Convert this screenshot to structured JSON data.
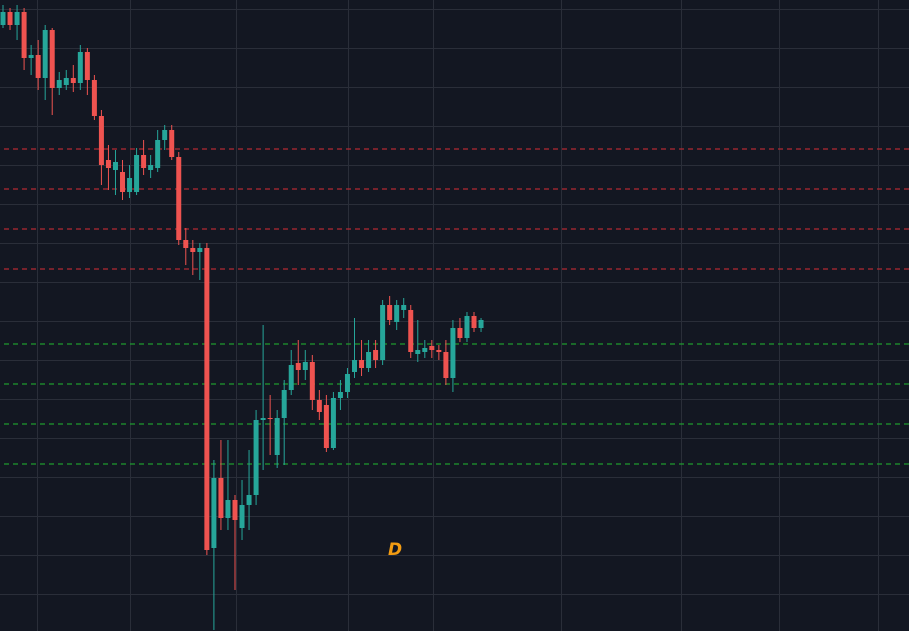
{
  "chart_data": {
    "type": "candlestick",
    "annotation": "D",
    "annotation_color": "#f39c12",
    "up_color": "#26a69a",
    "down_color": "#ef5350",
    "ylim": [
      0,
      630
    ],
    "open": [
      605,
      618,
      605,
      618,
      572,
      575,
      552,
      600,
      542,
      545,
      552,
      547,
      578,
      550,
      514,
      470,
      460,
      458,
      438,
      438,
      475,
      460,
      462,
      490,
      500,
      473,
      390,
      382,
      378,
      382,
      82,
      152,
      112,
      130,
      102,
      125,
      135,
      210,
      212,
      175,
      212,
      240,
      267,
      260,
      268,
      230,
      225,
      182,
      232,
      238,
      258,
      270,
      262,
      280,
      270,
      325,
      308,
      320,
      320,
      276,
      278,
      284,
      280,
      278,
      252,
      302,
      292,
      314,
      302
    ],
    "high": [
      625,
      622,
      625,
      622,
      585,
      590,
      605,
      602,
      558,
      560,
      565,
      585,
      582,
      555,
      520,
      485,
      480,
      470,
      465,
      482,
      490,
      475,
      500,
      505,
      505,
      478,
      402,
      390,
      387,
      387,
      170,
      190,
      190,
      135,
      150,
      180,
      220,
      305,
      235,
      220,
      250,
      280,
      290,
      280,
      275,
      240,
      235,
      238,
      250,
      262,
      312,
      290,
      290,
      290,
      330,
      334,
      330,
      332,
      325,
      310,
      290,
      290,
      285,
      290,
      310,
      312,
      318,
      318,
      312
    ],
    "low": [
      602,
      600,
      590,
      560,
      555,
      540,
      530,
      515,
      535,
      540,
      538,
      540,
      535,
      510,
      445,
      440,
      435,
      430,
      432,
      435,
      455,
      452,
      458,
      480,
      470,
      385,
      365,
      355,
      350,
      75,
      0,
      100,
      100,
      40,
      90,
      100,
      125,
      160,
      175,
      162,
      165,
      235,
      245,
      250,
      220,
      210,
      178,
      180,
      220,
      232,
      252,
      254,
      258,
      262,
      265,
      305,
      300,
      312,
      272,
      268,
      272,
      272,
      270,
      245,
      238,
      288,
      288,
      298,
      298
    ],
    "close": [
      618,
      605,
      618,
      572,
      575,
      552,
      600,
      542,
      550,
      552,
      547,
      578,
      550,
      514,
      465,
      462,
      468,
      438,
      452,
      475,
      462,
      465,
      490,
      500,
      473,
      390,
      382,
      378,
      382,
      80,
      152,
      112,
      130,
      110,
      125,
      135,
      210,
      212,
      212,
      212,
      240,
      265,
      260,
      268,
      230,
      218,
      182,
      232,
      238,
      256,
      270,
      262,
      278,
      270,
      325,
      310,
      325,
      325,
      278,
      280,
      282,
      280,
      278,
      252,
      302,
      292,
      314,
      302,
      310
    ],
    "levels": [
      {
        "value": 481,
        "color": "#b22833"
      },
      {
        "value": 441,
        "color": "#b22833"
      },
      {
        "value": 401,
        "color": "#b22833"
      },
      {
        "value": 361,
        "color": "#b22833"
      },
      {
        "value": 286,
        "color": "#1f9a2e"
      },
      {
        "value": 246,
        "color": "#1f9a2e"
      },
      {
        "value": 206,
        "color": "#1f9a2e"
      },
      {
        "value": 166,
        "color": "#1f9a2e"
      }
    ]
  }
}
